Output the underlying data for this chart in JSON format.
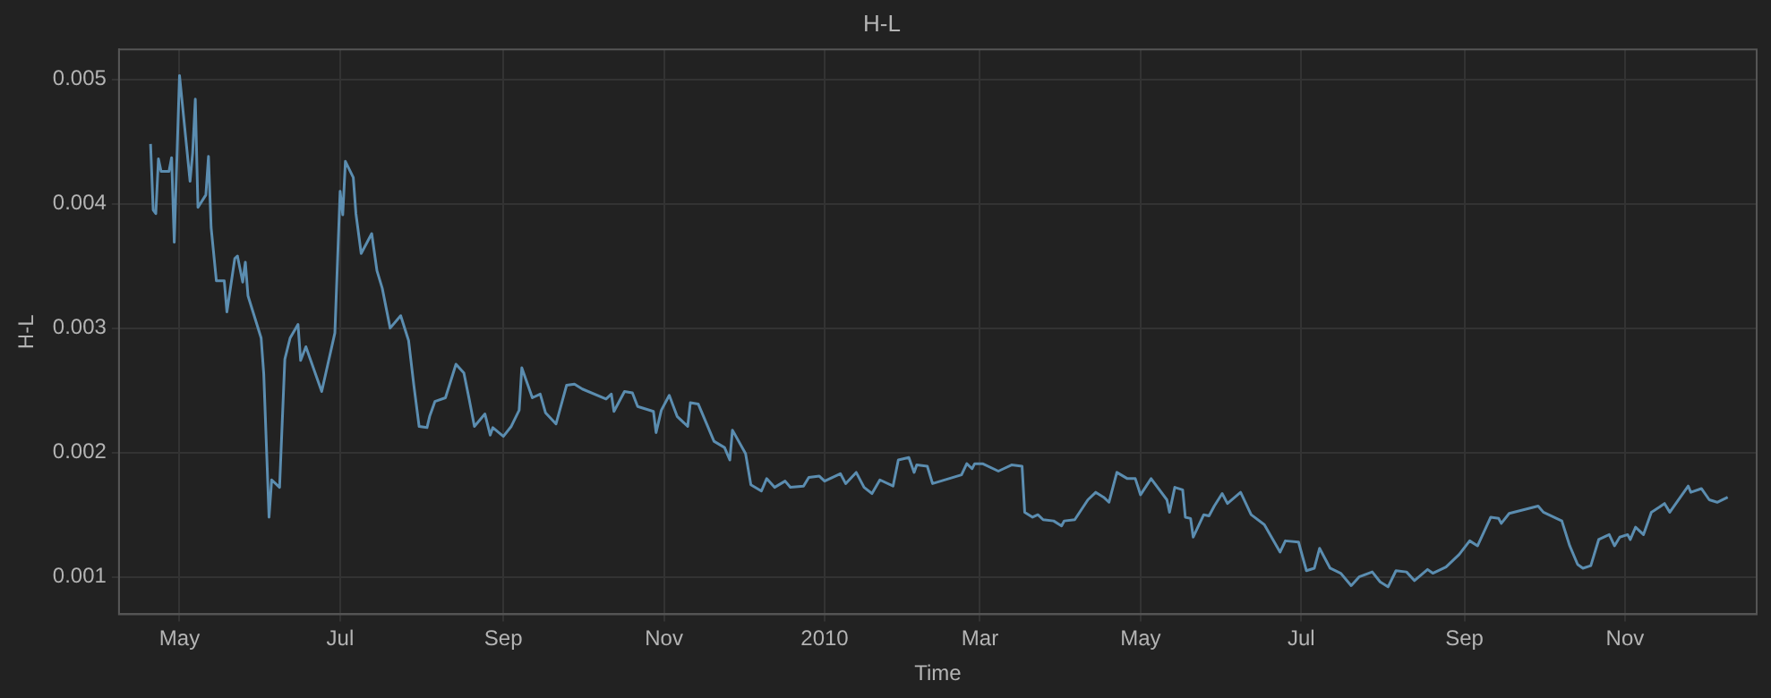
{
  "chart_data": {
    "type": "line",
    "title": "H-L",
    "xlabel": "Time",
    "ylabel": "H-L",
    "x": [
      "2009-04-20",
      "2009-04-21",
      "2009-04-22",
      "2009-04-23",
      "2009-04-24",
      "2009-04-27",
      "2009-04-28",
      "2009-04-29",
      "2009-05-01",
      "2009-05-05",
      "2009-05-06",
      "2009-05-07",
      "2009-05-08",
      "2009-05-11",
      "2009-05-12",
      "2009-05-13",
      "2009-05-15",
      "2009-05-18",
      "2009-05-19",
      "2009-05-22",
      "2009-05-23",
      "2009-05-25",
      "2009-05-26",
      "2009-05-27",
      "2009-06-01",
      "2009-06-02",
      "2009-06-04",
      "2009-06-05",
      "2009-06-08",
      "2009-06-10",
      "2009-06-12",
      "2009-06-15",
      "2009-06-16",
      "2009-06-18",
      "2009-06-24",
      "2009-06-29",
      "2009-07-01",
      "2009-07-02",
      "2009-07-03",
      "2009-07-06",
      "2009-07-07",
      "2009-07-09",
      "2009-07-13",
      "2009-07-15",
      "2009-07-17",
      "2009-07-20",
      "2009-07-24",
      "2009-07-27",
      "2009-07-29",
      "2009-07-31",
      "2009-08-03",
      "2009-08-04",
      "2009-08-06",
      "2009-08-10",
      "2009-08-14",
      "2009-08-17",
      "2009-08-19",
      "2009-08-21",
      "2009-08-25",
      "2009-08-27",
      "2009-08-28",
      "2009-09-01",
      "2009-09-04",
      "2009-09-07",
      "2009-09-08",
      "2009-09-12",
      "2009-09-15",
      "2009-09-17",
      "2009-09-21",
      "2009-09-25",
      "2009-09-28",
      "2009-10-01",
      "2009-10-10",
      "2009-10-12",
      "2009-10-13",
      "2009-10-17",
      "2009-10-20",
      "2009-10-22",
      "2009-10-28",
      "2009-10-29",
      "2009-10-31",
      "2009-11-03",
      "2009-11-06",
      "2009-11-10",
      "2009-11-11",
      "2009-11-14",
      "2009-11-20",
      "2009-11-24",
      "2009-11-26",
      "2009-11-27",
      "2009-12-02",
      "2009-12-04",
      "2009-12-08",
      "2009-12-10",
      "2009-12-13",
      "2009-12-17",
      "2009-12-19",
      "2009-12-24",
      "2009-12-26",
      "2009-12-30",
      "2010-01-01",
      "2010-01-07",
      "2010-01-09",
      "2010-01-13",
      "2010-01-16",
      "2010-01-19",
      "2010-01-22",
      "2010-01-27",
      "2010-01-29",
      "2010-02-02",
      "2010-02-04",
      "2010-02-05",
      "2010-02-09",
      "2010-02-11",
      "2010-02-22",
      "2010-02-24",
      "2010-02-26",
      "2010-02-27",
      "2010-03-02",
      "2010-03-08",
      "2010-03-10",
      "2010-03-13",
      "2010-03-17",
      "2010-03-18",
      "2010-03-21",
      "2010-03-23",
      "2010-03-25",
      "2010-03-29",
      "2010-04-01",
      "2010-04-02",
      "2010-04-06",
      "2010-04-11",
      "2010-04-14",
      "2010-04-17",
      "2010-04-19",
      "2010-04-22",
      "2010-04-26",
      "2010-04-29",
      "2010-05-01",
      "2010-05-05",
      "2010-05-11",
      "2010-05-12",
      "2010-05-14",
      "2010-05-17",
      "2010-05-18",
      "2010-05-20",
      "2010-05-21",
      "2010-05-25",
      "2010-05-27",
      "2010-05-29",
      "2010-06-01",
      "2010-06-03",
      "2010-06-08",
      "2010-06-10",
      "2010-06-12",
      "2010-06-17",
      "2010-06-23",
      "2010-06-25",
      "2010-06-30",
      "2010-07-03",
      "2010-07-06",
      "2010-07-08",
      "2010-07-12",
      "2010-07-16",
      "2010-07-20",
      "2010-07-23",
      "2010-07-28",
      "2010-07-31",
      "2010-08-03",
      "2010-08-06",
      "2010-08-10",
      "2010-08-13",
      "2010-08-18",
      "2010-08-20",
      "2010-08-25",
      "2010-08-30",
      "2010-09-03",
      "2010-09-06",
      "2010-09-11",
      "2010-09-14",
      "2010-09-15",
      "2010-09-18",
      "2010-09-29",
      "2010-10-01",
      "2010-10-08",
      "2010-10-11",
      "2010-10-14",
      "2010-10-16",
      "2010-10-19",
      "2010-10-22",
      "2010-10-26",
      "2010-10-28",
      "2010-10-30",
      "2010-11-02",
      "2010-11-03",
      "2010-11-05",
      "2010-11-08",
      "2010-11-11",
      "2010-11-14",
      "2010-11-16",
      "2010-11-18",
      "2010-11-22",
      "2010-11-25",
      "2010-11-26",
      "2010-11-30",
      "2010-12-03",
      "2010-12-06",
      "2010-12-10"
    ],
    "series": [
      {
        "color": "#5b8db0",
        "values": [
          0.00448,
          0.00395,
          0.00392,
          0.00436,
          0.00426,
          0.00426,
          0.00437,
          0.00369,
          0.00503,
          0.00418,
          0.00441,
          0.00484,
          0.00397,
          0.00407,
          0.00438,
          0.00381,
          0.00338,
          0.00338,
          0.00313,
          0.00356,
          0.00358,
          0.00337,
          0.00353,
          0.00326,
          0.00292,
          0.00263,
          0.00148,
          0.00178,
          0.00172,
          0.00275,
          0.00292,
          0.00303,
          0.00274,
          0.00285,
          0.00249,
          0.00296,
          0.0041,
          0.00391,
          0.00434,
          0.00421,
          0.00392,
          0.0036,
          0.00376,
          0.00346,
          0.00332,
          0.003,
          0.0031,
          0.0029,
          0.00254,
          0.00221,
          0.0022,
          0.00229,
          0.00241,
          0.00244,
          0.00271,
          0.00264,
          0.00243,
          0.00221,
          0.00231,
          0.00214,
          0.0022,
          0.00213,
          0.00221,
          0.00234,
          0.00268,
          0.00244,
          0.00247,
          0.00232,
          0.00223,
          0.00254,
          0.00255,
          0.00251,
          0.00243,
          0.00247,
          0.00233,
          0.00249,
          0.00248,
          0.00237,
          0.00233,
          0.00216,
          0.00234,
          0.00246,
          0.00229,
          0.00221,
          0.0024,
          0.00239,
          0.00209,
          0.00204,
          0.00194,
          0.00218,
          0.00199,
          0.00174,
          0.00169,
          0.00179,
          0.00172,
          0.00177,
          0.00172,
          0.00173,
          0.0018,
          0.00181,
          0.00177,
          0.00183,
          0.00175,
          0.00184,
          0.00172,
          0.00167,
          0.00178,
          0.00173,
          0.00194,
          0.00196,
          0.00184,
          0.0019,
          0.00189,
          0.00175,
          0.00182,
          0.00191,
          0.00187,
          0.00191,
          0.00191,
          0.00185,
          0.00187,
          0.0019,
          0.00189,
          0.00152,
          0.00148,
          0.0015,
          0.00146,
          0.00145,
          0.00141,
          0.00145,
          0.00146,
          0.00162,
          0.00168,
          0.00164,
          0.0016,
          0.00184,
          0.00179,
          0.00179,
          0.00166,
          0.00179,
          0.00162,
          0.00152,
          0.00172,
          0.0017,
          0.00148,
          0.00147,
          0.00132,
          0.0015,
          0.00149,
          0.00157,
          0.00167,
          0.00159,
          0.00168,
          0.00159,
          0.0015,
          0.00142,
          0.0012,
          0.00129,
          0.00128,
          0.00105,
          0.00107,
          0.00123,
          0.00107,
          0.00103,
          0.00093,
          0.001,
          0.00104,
          0.00096,
          0.00092,
          0.00105,
          0.00104,
          0.00097,
          0.00106,
          0.00103,
          0.00108,
          0.00118,
          0.00129,
          0.00125,
          0.00148,
          0.00147,
          0.00143,
          0.00151,
          0.00157,
          0.00152,
          0.00145,
          0.00125,
          0.0011,
          0.00107,
          0.00109,
          0.0013,
          0.00134,
          0.00125,
          0.00132,
          0.00134,
          0.0013,
          0.0014,
          0.00134,
          0.00152,
          0.00156,
          0.00159,
          0.00152,
          0.00164,
          0.00173,
          0.00168,
          0.00171,
          0.00162,
          0.0016,
          0.00164
        ]
      }
    ],
    "xlim": [
      "2009-04-08",
      "2010-12-21"
    ],
    "xticks": [
      {
        "value": "2009-05-01",
        "label": "May"
      },
      {
        "value": "2009-07-01",
        "label": "Jul"
      },
      {
        "value": "2009-09-01",
        "label": "Sep"
      },
      {
        "value": "2009-11-01",
        "label": "Nov"
      },
      {
        "value": "2010-01-01",
        "label": "2010"
      },
      {
        "value": "2010-03-01",
        "label": "Mar"
      },
      {
        "value": "2010-05-01",
        "label": "May"
      },
      {
        "value": "2010-07-01",
        "label": "Jul"
      },
      {
        "value": "2010-09-01",
        "label": "Sep"
      },
      {
        "value": "2010-11-01",
        "label": "Nov"
      }
    ],
    "ylim": [
      0.0007,
      0.00524
    ],
    "yticks": [
      0.001,
      0.002,
      0.003,
      0.004,
      0.005
    ],
    "grid": true,
    "marker": "none",
    "line_style": "solid"
  }
}
